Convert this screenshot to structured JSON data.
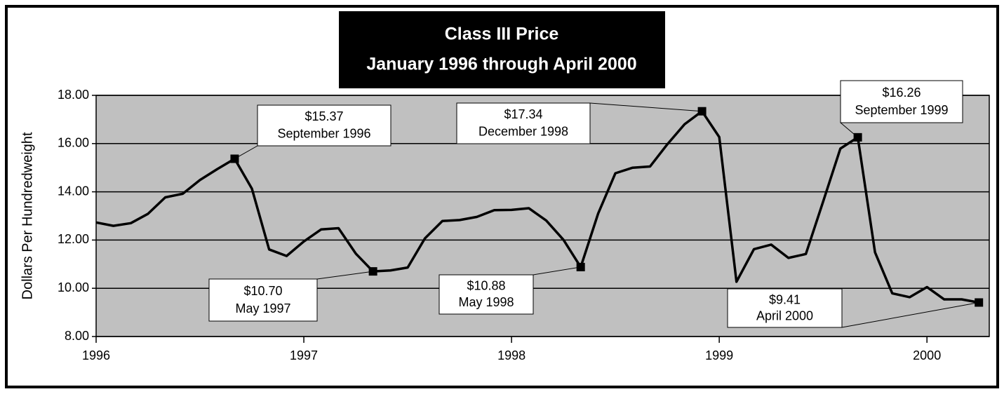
{
  "chart_data": {
    "type": "line",
    "title": "Class III Price",
    "subtitle": "January 1996 through April 2000",
    "y_label": "Dollars Per Hundredweight",
    "xlim": [
      1996,
      2000.3
    ],
    "xticks": [
      1996,
      1997,
      1998,
      1999,
      2000
    ],
    "ylim": [
      8,
      18
    ],
    "yticks": [
      {
        "value": 8,
        "label": "8.00"
      },
      {
        "value": 10,
        "label": "10.00"
      },
      {
        "value": 12,
        "label": "12.00"
      },
      {
        "value": 14,
        "label": "14.00"
      },
      {
        "value": 16,
        "label": "16.00"
      },
      {
        "value": 18,
        "label": "18.00"
      }
    ],
    "grid": true,
    "background": "#c0c0c0",
    "x": [
      1996,
      1996.083,
      1996.167,
      1996.25,
      1996.333,
      1996.417,
      1996.5,
      1996.583,
      1996.667,
      1996.75,
      1996.833,
      1996.917,
      1997,
      1997.083,
      1997.167,
      1997.25,
      1997.333,
      1997.417,
      1997.5,
      1997.583,
      1997.667,
      1997.75,
      1997.833,
      1997.917,
      1998,
      1998.083,
      1998.167,
      1998.25,
      1998.333,
      1998.417,
      1998.5,
      1998.583,
      1998.667,
      1998.75,
      1998.833,
      1998.917,
      1999,
      1999.083,
      1999.167,
      1999.25,
      1999.333,
      1999.417,
      1999.5,
      1999.583,
      1999.667,
      1999.75,
      1999.833,
      1999.917,
      2000,
      2000.083,
      2000.167,
      2000.25
    ],
    "series": [
      {
        "name": "Class III Price",
        "color": "#000000",
        "values": [
          12.73,
          12.59,
          12.7,
          13.09,
          13.77,
          13.92,
          14.49,
          14.94,
          15.37,
          14.13,
          11.61,
          11.34,
          11.94,
          12.44,
          12.49,
          11.44,
          10.7,
          10.74,
          10.86,
          12.07,
          12.79,
          12.83,
          12.96,
          13.24,
          13.25,
          13.32,
          12.81,
          12.01,
          10.88,
          13.1,
          14.77,
          15.0,
          15.05,
          15.97,
          16.8,
          17.34,
          16.27,
          10.27,
          11.62,
          11.81,
          11.26,
          11.42,
          13.59,
          15.79,
          16.26,
          11.49,
          9.79,
          9.63,
          10.05,
          9.54,
          9.54,
          9.41
        ],
        "value_labels": [
          null,
          null,
          null,
          null,
          null,
          null,
          null,
          null,
          "$15.37",
          null,
          null,
          null,
          null,
          null,
          null,
          null,
          "$10.70",
          null,
          null,
          null,
          null,
          null,
          null,
          null,
          null,
          null,
          null,
          null,
          "$10.88",
          null,
          null,
          null,
          null,
          null,
          null,
          "$17.34",
          null,
          null,
          null,
          null,
          null,
          null,
          null,
          null,
          "$16.26",
          null,
          null,
          null,
          null,
          null,
          null,
          "$9.41"
        ],
        "annotations": [
          null,
          null,
          null,
          null,
          null,
          null,
          null,
          null,
          "September 1996",
          null,
          null,
          null,
          null,
          null,
          null,
          null,
          "May 1997",
          null,
          null,
          null,
          null,
          null,
          null,
          null,
          null,
          null,
          null,
          null,
          "May 1998",
          null,
          null,
          null,
          null,
          null,
          null,
          "December 1998",
          null,
          null,
          null,
          null,
          null,
          null,
          null,
          null,
          "September 1999",
          null,
          null,
          null,
          null,
          null,
          null,
          "April 2000"
        ]
      }
    ]
  }
}
